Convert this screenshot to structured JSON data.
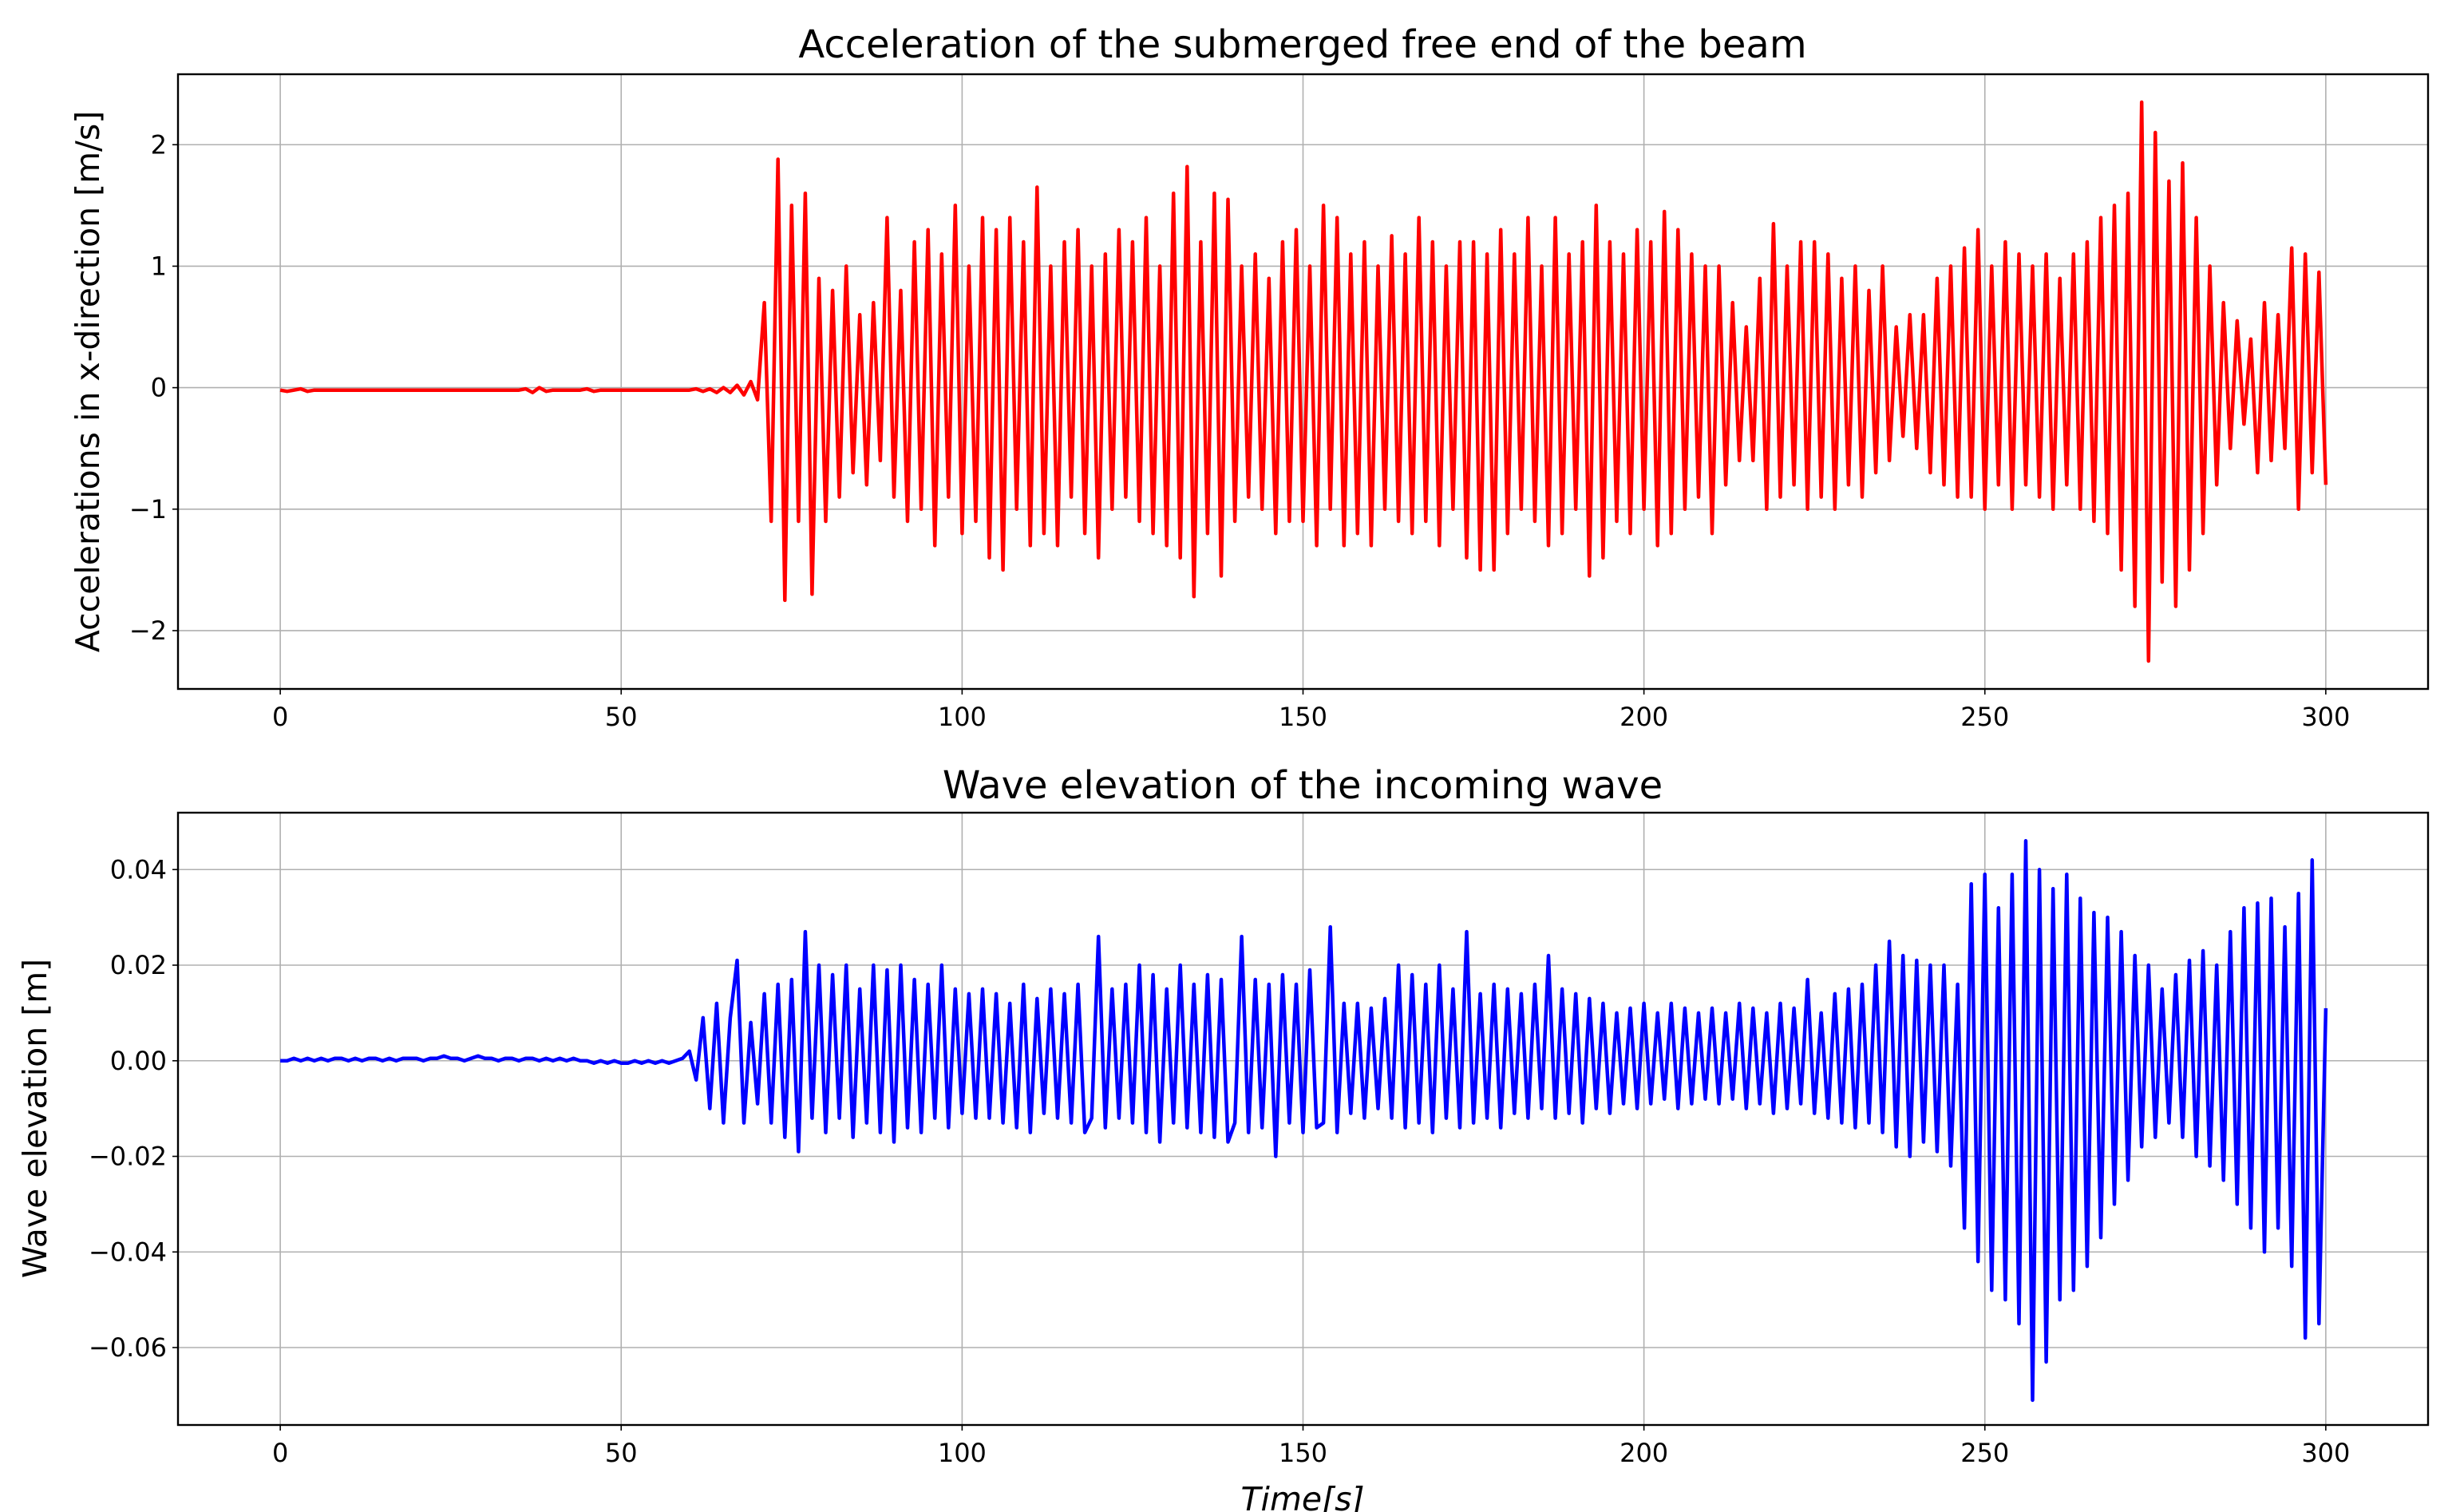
{
  "chart_data": [
    {
      "type": "line",
      "title": "Acceleration of the submerged free end of the beam",
      "xlabel": "",
      "ylabel": "Accelerations in x-direction [m/s]",
      "xlim": [
        -15,
        315
      ],
      "ylim": [
        -2.48,
        2.58
      ],
      "xticks": [
        0,
        50,
        100,
        150,
        200,
        250,
        300
      ],
      "xtick_labels": [
        "0",
        "50",
        "100",
        "150",
        "200",
        "250",
        "300"
      ],
      "yticks": [
        -2,
        -1,
        0,
        1,
        2
      ],
      "ytick_labels": [
        "−2",
        "−1",
        "0",
        "1",
        "2"
      ],
      "grid": true,
      "color": "#ff0000",
      "series": [
        {
          "name": "acceleration",
          "x_start": 0,
          "dt": 1,
          "values": [
            -0.02,
            -0.03,
            -0.02,
            -0.01,
            -0.03,
            -0.02,
            -0.02,
            -0.02,
            -0.02,
            -0.02,
            -0.02,
            -0.02,
            -0.02,
            -0.02,
            -0.02,
            -0.02,
            -0.02,
            -0.02,
            -0.02,
            -0.02,
            -0.02,
            -0.02,
            -0.02,
            -0.02,
            -0.02,
            -0.02,
            -0.02,
            -0.02,
            -0.02,
            -0.02,
            -0.02,
            -0.02,
            -0.02,
            -0.02,
            -0.02,
            -0.02,
            -0.01,
            -0.04,
            0.0,
            -0.03,
            -0.02,
            -0.02,
            -0.02,
            -0.02,
            -0.02,
            -0.01,
            -0.03,
            -0.02,
            -0.02,
            -0.02,
            -0.02,
            -0.02,
            -0.02,
            -0.02,
            -0.02,
            -0.02,
            -0.02,
            -0.02,
            -0.02,
            -0.02,
            -0.02,
            -0.01,
            -0.03,
            -0.01,
            -0.04,
            0.0,
            -0.04,
            0.02,
            -0.06,
            0.05,
            -0.1,
            0.7,
            -1.1,
            1.88,
            -1.75,
            1.5,
            -1.1,
            1.6,
            -1.7,
            0.9,
            -1.1,
            0.8,
            -0.9,
            1.0,
            -0.7,
            0.6,
            -0.8,
            0.7,
            -0.6,
            1.4,
            -0.9,
            0.8,
            -1.1,
            1.2,
            -1.0,
            1.3,
            -1.3,
            1.1,
            -0.9,
            1.5,
            -1.2,
            1.0,
            -1.1,
            1.4,
            -1.4,
            1.3,
            -1.5,
            1.4,
            -1.0,
            1.2,
            -1.3,
            1.65,
            -1.2,
            1.0,
            -1.3,
            1.2,
            -0.9,
            1.3,
            -1.2,
            1.0,
            -1.4,
            1.1,
            -1.0,
            1.3,
            -0.9,
            1.2,
            -1.1,
            1.4,
            -1.2,
            1.0,
            -1.3,
            1.6,
            -1.4,
            1.82,
            -1.72,
            1.2,
            -1.2,
            1.6,
            -1.55,
            1.55,
            -1.1,
            1.0,
            -0.9,
            1.1,
            -1.0,
            0.9,
            -1.2,
            1.2,
            -1.1,
            1.3,
            -1.1,
            1.0,
            -1.3,
            1.5,
            -1.0,
            1.4,
            -1.3,
            1.1,
            -1.2,
            1.2,
            -1.3,
            1.0,
            -1.0,
            1.25,
            -1.1,
            1.1,
            -1.2,
            1.4,
            -1.1,
            1.2,
            -1.3,
            1.0,
            -1.0,
            1.2,
            -1.4,
            1.2,
            -1.5,
            1.1,
            -1.5,
            1.3,
            -1.2,
            1.1,
            -1.0,
            1.4,
            -1.1,
            1.0,
            -1.3,
            1.4,
            -1.2,
            1.1,
            -1.0,
            1.2,
            -1.55,
            1.5,
            -1.4,
            1.2,
            -1.1,
            1.1,
            -1.2,
            1.3,
            -1.0,
            1.2,
            -1.3,
            1.45,
            -1.2,
            1.3,
            -1.0,
            1.1,
            -0.9,
            1.0,
            -1.2,
            1.0,
            -0.8,
            0.7,
            -0.6,
            0.5,
            -0.6,
            0.9,
            -1.0,
            1.35,
            -0.9,
            1.0,
            -0.8,
            1.2,
            -1.0,
            1.2,
            -0.9,
            1.1,
            -1.0,
            0.9,
            -0.8,
            1.0,
            -0.9,
            0.8,
            -0.7,
            1.0,
            -0.6,
            0.5,
            -0.4,
            0.6,
            -0.5,
            0.6,
            -0.7,
            0.9,
            -0.8,
            1.0,
            -0.9,
            1.15,
            -0.9,
            1.3,
            -1.0,
            1.0,
            -0.8,
            1.2,
            -1.0,
            1.1,
            -0.8,
            1.0,
            -0.9,
            1.1,
            -1.0,
            0.9,
            -0.8,
            1.1,
            -1.0,
            1.2,
            -1.1,
            1.4,
            -1.2,
            1.5,
            -1.5,
            1.6,
            -1.8,
            2.35,
            -2.25,
            2.1,
            -1.6,
            1.7,
            -1.8,
            1.85,
            -1.5,
            1.4,
            -1.2,
            1.0,
            -0.8,
            0.7,
            -0.5,
            0.55,
            -0.3,
            0.4,
            -0.7,
            0.7,
            -0.6,
            0.6,
            -0.5,
            1.15,
            -1.0,
            1.1,
            -0.7,
            0.95,
            -0.8
          ]
        }
      ]
    },
    {
      "type": "line",
      "title": "Wave elevation of the incoming wave",
      "xlabel": "Time[s]",
      "ylabel": "Wave elevation [m]",
      "xlim": [
        -15,
        315
      ],
      "ylim": [
        -0.0762,
        0.0519
      ],
      "xticks": [
        0,
        50,
        100,
        150,
        200,
        250,
        300
      ],
      "xtick_labels": [
        "0",
        "50",
        "100",
        "150",
        "200",
        "250",
        "300"
      ],
      "yticks": [
        -0.06,
        -0.04,
        -0.02,
        0.0,
        0.02,
        0.04
      ],
      "ytick_labels": [
        "−0.06",
        "−0.04",
        "−0.02",
        "0.00",
        "0.02",
        "0.04"
      ],
      "grid": true,
      "color": "#0000ff",
      "series": [
        {
          "name": "wave elevation",
          "x_start": 0,
          "dt": 1,
          "values": [
            0.0,
            0.0,
            0.0005,
            0.0,
            0.0005,
            0.0,
            0.0005,
            0.0,
            0.0005,
            0.0005,
            0.0,
            0.0005,
            0.0,
            0.0005,
            0.0005,
            0.0,
            0.0005,
            0.0,
            0.0005,
            0.0005,
            0.0005,
            0.0,
            0.0005,
            0.0005,
            0.001,
            0.0005,
            0.0005,
            0.0,
            0.0005,
            0.001,
            0.0005,
            0.0005,
            0.0,
            0.0005,
            0.0005,
            0.0,
            0.0005,
            0.0005,
            0.0,
            0.0005,
            0.0,
            0.0005,
            0.0,
            0.0005,
            0.0,
            0.0,
            -0.0005,
            0.0,
            -0.0005,
            0.0,
            -0.0005,
            -0.0005,
            0.0,
            -0.0005,
            0.0,
            -0.0005,
            0.0,
            -0.0005,
            0.0,
            0.0005,
            0.002,
            -0.004,
            0.009,
            -0.01,
            0.012,
            -0.013,
            0.009,
            0.021,
            -0.013,
            0.008,
            -0.009,
            0.014,
            -0.013,
            0.016,
            -0.016,
            0.017,
            -0.019,
            0.027,
            -0.012,
            0.02,
            -0.015,
            0.018,
            -0.012,
            0.02,
            -0.016,
            0.015,
            -0.013,
            0.02,
            -0.015,
            0.019,
            -0.017,
            0.02,
            -0.014,
            0.017,
            -0.015,
            0.016,
            -0.012,
            0.02,
            -0.014,
            0.015,
            -0.011,
            0.014,
            -0.012,
            0.015,
            -0.012,
            0.014,
            -0.013,
            0.012,
            -0.014,
            0.016,
            -0.015,
            0.013,
            -0.011,
            0.015,
            -0.012,
            0.014,
            -0.013,
            0.016,
            -0.015,
            -0.012,
            0.026,
            -0.014,
            0.015,
            -0.012,
            0.016,
            -0.013,
            0.02,
            -0.015,
            0.018,
            -0.017,
            0.015,
            -0.013,
            0.02,
            -0.014,
            0.016,
            -0.015,
            0.018,
            -0.016,
            0.017,
            -0.017,
            -0.013,
            0.026,
            -0.015,
            0.017,
            -0.014,
            0.016,
            -0.02,
            0.018,
            -0.013,
            0.016,
            -0.015,
            0.019,
            -0.014,
            -0.013,
            0.028,
            -0.015,
            0.012,
            -0.011,
            0.012,
            -0.012,
            0.011,
            -0.01,
            0.013,
            -0.012,
            0.02,
            -0.014,
            0.018,
            -0.013,
            0.016,
            -0.015,
            0.02,
            -0.012,
            0.015,
            -0.014,
            0.027,
            -0.013,
            0.014,
            -0.012,
            0.016,
            -0.014,
            0.015,
            -0.011,
            0.014,
            -0.012,
            0.016,
            -0.01,
            0.022,
            -0.012,
            0.015,
            -0.011,
            0.014,
            -0.013,
            0.013,
            -0.01,
            0.012,
            -0.011,
            0.01,
            -0.009,
            0.011,
            -0.01,
            0.012,
            -0.009,
            0.01,
            -0.008,
            0.012,
            -0.01,
            0.011,
            -0.009,
            0.01,
            -0.008,
            0.011,
            -0.009,
            0.01,
            -0.008,
            0.012,
            -0.01,
            0.011,
            -0.009,
            0.01,
            -0.011,
            0.012,
            -0.01,
            0.011,
            -0.009,
            0.017,
            -0.011,
            0.01,
            -0.012,
            0.014,
            -0.013,
            0.015,
            -0.014,
            0.016,
            -0.013,
            0.02,
            -0.015,
            0.025,
            -0.018,
            0.022,
            -0.02,
            0.021,
            -0.017,
            0.02,
            -0.019,
            0.02,
            -0.022,
            0.016,
            -0.035,
            0.037,
            -0.042,
            0.039,
            -0.048,
            0.032,
            -0.05,
            0.039,
            -0.055,
            0.046,
            -0.071,
            0.04,
            -0.063,
            0.036,
            -0.05,
            0.039,
            -0.048,
            0.034,
            -0.043,
            0.031,
            -0.037,
            0.03,
            -0.03,
            0.027,
            -0.025,
            0.022,
            -0.018,
            0.02,
            -0.016,
            0.015,
            -0.013,
            0.018,
            -0.016,
            0.021,
            -0.02,
            0.023,
            -0.022,
            0.02,
            -0.025,
            0.027,
            -0.03,
            0.032,
            -0.035,
            0.033,
            -0.04,
            0.034,
            -0.035,
            0.028,
            -0.043,
            0.035,
            -0.058,
            0.042,
            -0.055,
            0.011
          ]
        }
      ]
    }
  ]
}
